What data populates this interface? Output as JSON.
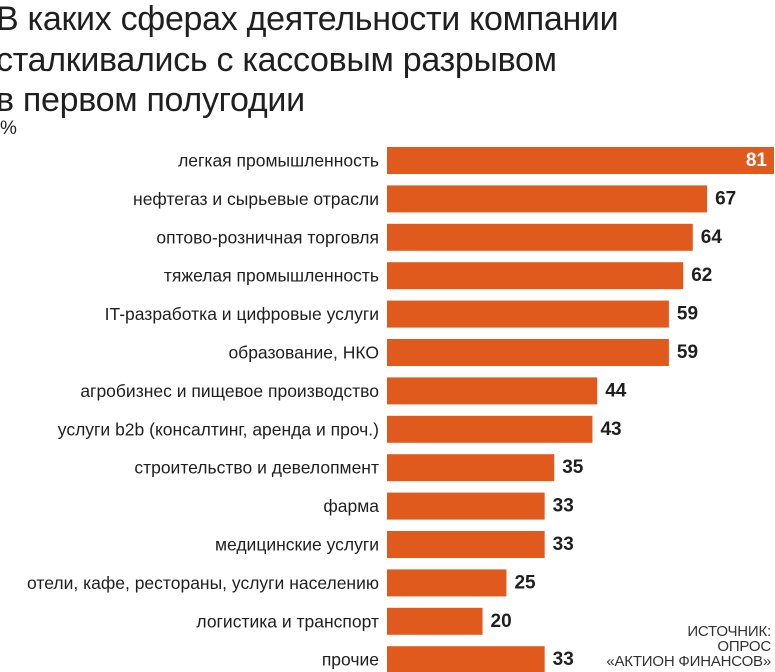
{
  "chart_data": {
    "type": "bar",
    "orientation": "horizontal",
    "title": [
      "В каких сферах деятельности компании",
      "сталкивались с кассовым разрывом",
      "в первом полугодии"
    ],
    "unit": "%",
    "categories": [
      "легкая промышленность",
      "нефтегаз и сырьевые отрасли",
      "оптово-розничная торговля",
      "тяжелая промышленность",
      "IT-разработка и цифровые услуги",
      "образование, НКО",
      "агробизнес и пищевое производство",
      "услуги b2b (консалтинг, аренда и проч.)",
      "строительство и девелопмент",
      "фарма",
      "медицинские услуги",
      "отели, кафе, рестораны, услуги населению",
      "логистика и транспорт",
      "прочие"
    ],
    "values": [
      81,
      67,
      64,
      62,
      59,
      59,
      44,
      43,
      35,
      33,
      33,
      25,
      20,
      33
    ],
    "color": "#e05a1e",
    "xlim": [
      0,
      81
    ]
  },
  "source": [
    "ИСТОЧНИК:",
    "ОПРОС",
    "«АКТИОН ФИНАНСОВ»"
  ]
}
